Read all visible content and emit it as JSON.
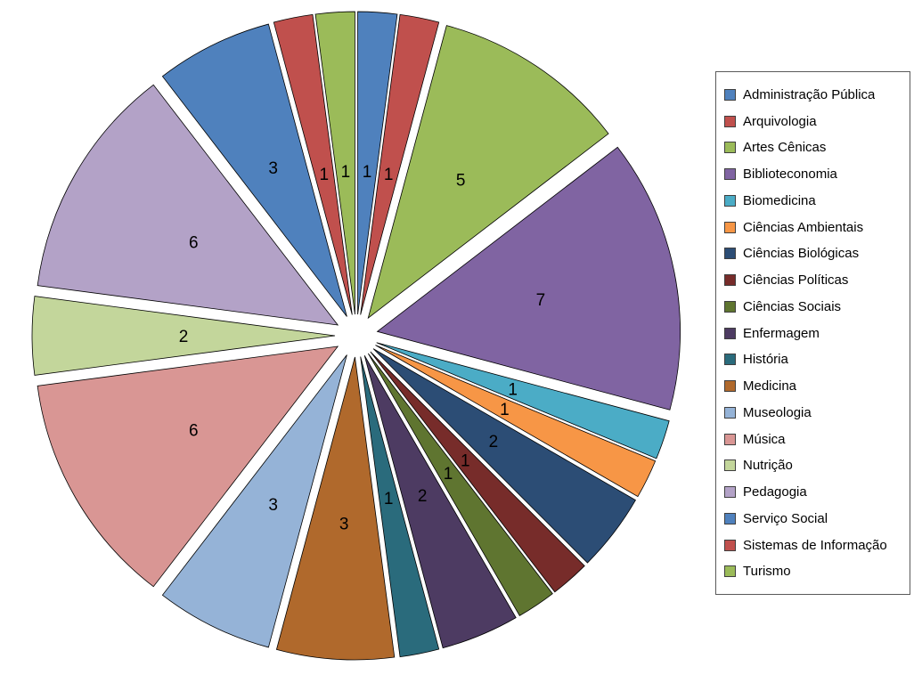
{
  "chart_data": {
    "type": "pie",
    "title": "",
    "style": "exploded",
    "direction": "clockwise",
    "start_angle_deg": 0,
    "legend_position": "right",
    "total": 48,
    "categories": [
      "Administração Pública",
      "Arquivologia",
      "Artes Cênicas",
      "Biblioteconomia",
      "Biomedicina",
      "Ciências Ambientais",
      "Ciências Biológicas",
      "Ciências Políticas",
      "Ciências Sociais",
      "Enfermagem",
      "História",
      "Medicina",
      "Museologia",
      "Música",
      "Nutrição",
      "Pedagogia",
      "Serviço Social",
      "Sistemas de Informação",
      "Turismo"
    ],
    "values": [
      1,
      1,
      5,
      7,
      1,
      1,
      2,
      1,
      1,
      2,
      1,
      3,
      3,
      6,
      2,
      6,
      3,
      1,
      1
    ],
    "colors": [
      "#4F81BD",
      "#C0504D",
      "#9BBB59",
      "#8064A2",
      "#4BACC6",
      "#F79646",
      "#2C4D75",
      "#772C2A",
      "#5F7530",
      "#4D3B62",
      "#2A6B7C",
      "#B0692C",
      "#95B3D7",
      "#D99694",
      "#C3D69B",
      "#B3A2C7",
      "#4F81BD",
      "#C0504D",
      "#9BBB59"
    ],
    "data_labels": [
      "1",
      "1",
      "5",
      "7",
      "1",
      "1",
      "2",
      "1",
      "1",
      "2",
      "1",
      "3",
      "3",
      "6",
      "2",
      "6",
      "3",
      "1",
      "1"
    ]
  },
  "legend": {
    "border_color": "#5a5a5a",
    "background": "#ffffff"
  },
  "layout": {
    "label_color": "#000000",
    "background": "#ffffff"
  }
}
